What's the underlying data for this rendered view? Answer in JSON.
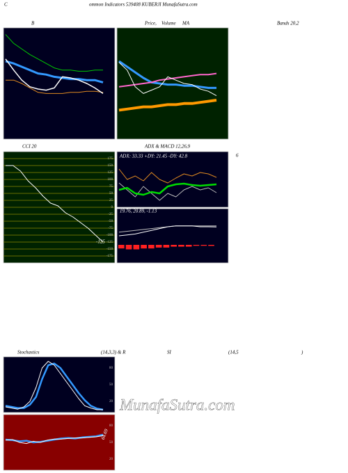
{
  "header": {
    "letter": "C",
    "title": "ommon Indicators 539408 KUBERJI MunafaSutra.com",
    "watermark": "MunafaSutra.com"
  },
  "captions": [
    "B",
    "Price,",
    "Volume",
    "MA",
    "Bands 20,2",
    "CCI 20",
    "ADX  & MACD 12,26,9",
    "6",
    "Stochastics",
    "(14,3,3) & R",
    "SI",
    "(14,5",
    ")"
  ],
  "chart_data": [
    {
      "type": "line",
      "background": "#000020",
      "ylim": [
        0,
        100
      ],
      "series": [
        {
          "color": "#00cc00",
          "values": [
            94,
            86,
            81,
            76,
            72,
            68,
            64,
            62,
            62,
            61,
            61,
            62,
            62
          ]
        },
        {
          "color": "#3399ff",
          "width": 3,
          "values": [
            70,
            68,
            65,
            62,
            59,
            58,
            56,
            55,
            54,
            54,
            53,
            53,
            51
          ]
        },
        {
          "color": "#e08a20",
          "values": [
            53,
            53,
            50,
            46,
            42,
            41,
            41,
            41,
            42,
            42,
            43,
            43,
            42
          ]
        },
        {
          "color": "#ffffff",
          "width": 1.5,
          "values": [
            72,
            62,
            53,
            47,
            45,
            44,
            46,
            56,
            55,
            53,
            50,
            46,
            41
          ]
        }
      ]
    },
    {
      "type": "line",
      "background": "#002200",
      "ylim": [
        0,
        100
      ],
      "series": [
        {
          "color": "#3399ff",
          "width": 3,
          "values": [
            70,
            65,
            60,
            55,
            51,
            50,
            49,
            49,
            48,
            48,
            47,
            46,
            46
          ]
        },
        {
          "color": "#ff66cc",
          "width": 2,
          "values": [
            47,
            48,
            49,
            50,
            51,
            53,
            54,
            55,
            56,
            57,
            58,
            58,
            59
          ]
        },
        {
          "color": "#ff9900",
          "width": 4,
          "values": [
            26,
            27,
            28,
            29,
            29,
            30,
            31,
            31,
            32,
            32,
            33,
            34,
            35
          ]
        },
        {
          "color": "#ffffff",
          "values": [
            69,
            62,
            47,
            41,
            44,
            47,
            56,
            53,
            50,
            49,
            45,
            43,
            39
          ]
        }
      ]
    },
    {
      "type": "line",
      "background": "#002200",
      "grid": true,
      "grid_color": "#8a8a00",
      "ylim": [
        -200,
        200
      ],
      "yticks": [
        175,
        150,
        125,
        100,
        75,
        50,
        25,
        0,
        -25,
        -50,
        -75,
        -100,
        -125,
        -150,
        -175
      ],
      "annotation": "-125",
      "series": [
        {
          "color": "#ffffff",
          "values": [
            150,
            150,
            130,
            95,
            70,
            40,
            15,
            5,
            -20,
            -35,
            -55,
            -75,
            -100,
            -125
          ]
        }
      ]
    },
    {
      "type": "line",
      "background": "#000020",
      "ylim": [
        0,
        80
      ],
      "annotation": "ADX: 33.33  +DY: 21.45 -DY: 42.8",
      "series": [
        {
          "color": "#e08a20",
          "values": [
            55,
            40,
            45,
            38,
            50,
            40,
            35,
            42,
            48,
            45,
            50,
            48,
            43
          ]
        },
        {
          "color": "#bbbbbb",
          "values": [
            35,
            25,
            15,
            30,
            20,
            10,
            20,
            15,
            25,
            30,
            25,
            28,
            21
          ]
        },
        {
          "color": "#00dd00",
          "width": 2.5,
          "values": [
            25,
            28,
            20,
            18,
            22,
            20,
            30,
            33,
            34,
            32,
            31,
            32,
            33
          ]
        }
      ]
    },
    {
      "type": "line",
      "background": "#000020",
      "ylim": [
        -20,
        40
      ],
      "annotation": "19.76,  20.89,  -1.13",
      "bars": {
        "color": "#ff2020",
        "values": [
          -4,
          -5,
          -5,
          -4,
          -4,
          -3,
          -3,
          -2,
          -2,
          -2,
          -1,
          -1,
          -1.13
        ]
      },
      "series": [
        {
          "color": "#bbbbbb",
          "values": [
            14,
            15,
            16,
            17,
            18,
            19,
            20,
            21,
            21,
            21,
            21,
            21,
            20.89
          ]
        },
        {
          "color": "#ffffff",
          "values": [
            10,
            11,
            12,
            14,
            16,
            18,
            20,
            21,
            21,
            21,
            20,
            20,
            19.76
          ]
        }
      ]
    },
    {
      "type": "line",
      "background": "#000020",
      "ylim": [
        0,
        100
      ],
      "yticks": [
        80,
        50,
        20
      ],
      "series": [
        {
          "color": "#3399ff",
          "width": 2.5,
          "values": [
            12,
            10,
            8,
            8,
            14,
            28,
            60,
            85,
            88,
            80,
            65,
            50,
            35,
            22,
            12,
            7,
            5
          ]
        },
        {
          "color": "#ffffff",
          "values": [
            10,
            8,
            6,
            10,
            20,
            45,
            80,
            92,
            85,
            70,
            55,
            40,
            25,
            12,
            8,
            5,
            5
          ]
        }
      ]
    },
    {
      "type": "line",
      "background": "#880000",
      "ylim": [
        0,
        100
      ],
      "yticks": [
        80,
        50,
        20
      ],
      "annotation": "64.69",
      "series": [
        {
          "color": "#3399ff",
          "width": 2.5,
          "values": [
            55,
            54,
            52,
            53,
            50,
            51,
            53,
            55,
            57,
            58,
            57,
            59,
            60,
            61,
            64
          ]
        },
        {
          "color": "#ffffff",
          "values": [
            54,
            55,
            50,
            48,
            52,
            50,
            54,
            56,
            56,
            57,
            58,
            58,
            59,
            60,
            62
          ]
        }
      ]
    }
  ]
}
